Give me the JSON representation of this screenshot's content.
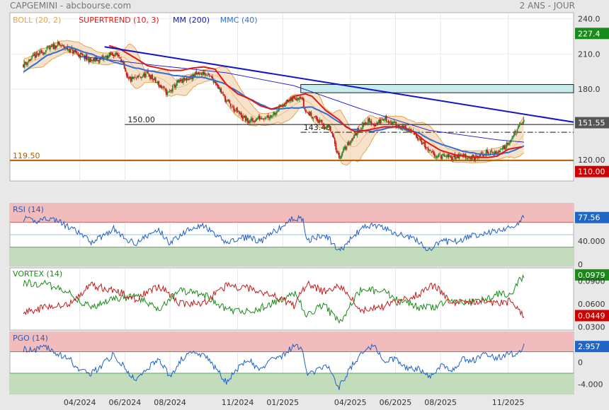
{
  "header": {
    "title": "CAPGEMINI - abcbourse.com",
    "period": "2 ANS - JOUR"
  },
  "colors": {
    "boll": "#e8a34a",
    "supertrend": "#e01818",
    "mm": "#1414c8",
    "mmc": "#2f6fd6",
    "candle_up": "#2e8b2e",
    "candle_down": "#c41a1a",
    "support": "#b35c00",
    "zone_high": "#f2bcbc",
    "zone_low": "#c2dcbc",
    "rectangle": "#c8ecec"
  },
  "chart_data": [
    {
      "type": "candlestick",
      "panel": "price",
      "legend": [
        {
          "label": "BOLL (20, 2)",
          "color": "#e8a34a"
        },
        {
          "label": "SUPERTREND (10, 3)",
          "color": "#e01818"
        },
        {
          "label": "MM (200)",
          "color": "#1414c8"
        },
        {
          "label": "MMC (40)",
          "color": "#2f6fd6"
        }
      ],
      "ylim": [
        102,
        245
      ],
      "yticks": [
        "240.0",
        "210.0",
        "180.0",
        "151.55",
        "120.00"
      ],
      "ytick_values": [
        240,
        210,
        180,
        151.55,
        120
      ],
      "xtick_labels": [
        "04/2024",
        "06/2024",
        "08/2024",
        "11/2024",
        "01/2025",
        "04/2025",
        "06/2025",
        "08/2025",
        "11/2025"
      ],
      "xtick_months": [
        2.5,
        4.5,
        6.5,
        9.5,
        11.5,
        14.5,
        16.5,
        18.5,
        21.5
      ],
      "x_range_months": [
        -0.6,
        24.4
      ],
      "close_anchors": [
        [
          0,
          201
        ],
        [
          0.5,
          208
        ],
        [
          1,
          213
        ],
        [
          1.5,
          218
        ],
        [
          2,
          214
        ],
        [
          2.5,
          209
        ],
        [
          3,
          204
        ],
        [
          3.5,
          206
        ],
        [
          4,
          210
        ],
        [
          4.3,
          208
        ],
        [
          4.6,
          188
        ],
        [
          5,
          189
        ],
        [
          5.5,
          193
        ],
        [
          6,
          184
        ],
        [
          6.4,
          176
        ],
        [
          6.8,
          185
        ],
        [
          7.2,
          188
        ],
        [
          7.6,
          192
        ],
        [
          8,
          194
        ],
        [
          8.5,
          187
        ],
        [
          9,
          170
        ],
        [
          9.5,
          160
        ],
        [
          10,
          152
        ],
        [
          10.5,
          156
        ],
        [
          11,
          158
        ],
        [
          11.5,
          167
        ],
        [
          12,
          172
        ],
        [
          12.3,
          175
        ],
        [
          12.5,
          161
        ],
        [
          12.8,
          158
        ],
        [
          13.2,
          151
        ],
        [
          13.6,
          146
        ],
        [
          14.0,
          122
        ],
        [
          14.3,
          131
        ],
        [
          14.8,
          144
        ],
        [
          15.2,
          153
        ],
        [
          15.6,
          150
        ],
        [
          16.0,
          155
        ],
        [
          16.5,
          150
        ],
        [
          17,
          146
        ],
        [
          17.5,
          140
        ],
        [
          18,
          126
        ],
        [
          18.5,
          123
        ],
        [
          19,
          122
        ],
        [
          19.5,
          124
        ],
        [
          20,
          121
        ],
        [
          20.5,
          126
        ],
        [
          21,
          126
        ],
        [
          21.3,
          131
        ],
        [
          21.7,
          140
        ],
        [
          22.0,
          148
        ],
        [
          22.2,
          154
        ]
      ],
      "supertrend_anchors": [
        [
          3.8,
          217
        ],
        [
          4.3,
          214
        ],
        [
          5,
          206
        ],
        [
          5.5,
          200
        ],
        [
          6,
          198
        ],
        [
          6.5,
          196
        ],
        [
          7,
          196
        ],
        [
          7.5,
          198
        ],
        [
          8,
          199
        ],
        [
          8.5,
          197
        ],
        [
          9,
          184
        ],
        [
          9.5,
          176
        ],
        [
          10,
          172
        ],
        [
          10.5,
          166
        ],
        [
          11,
          163
        ],
        [
          11.5,
          166
        ],
        [
          12,
          174
        ],
        [
          12.5,
          176
        ],
        [
          12.8,
          174
        ],
        [
          13.4,
          162
        ],
        [
          14.0,
          154
        ],
        [
          14.3,
          148
        ],
        [
          14.7,
          144
        ],
        [
          15.2,
          145
        ],
        [
          16.0,
          148
        ],
        [
          16.8,
          148
        ],
        [
          17.3,
          144
        ],
        [
          17.8,
          136
        ],
        [
          18.5,
          128
        ],
        [
          19.2,
          124
        ],
        [
          20,
          122
        ],
        [
          20.6,
          122
        ],
        [
          21,
          123
        ],
        [
          21.5,
          129
        ],
        [
          22.1,
          131
        ]
      ],
      "mm200_anchors": [
        [
          2.5,
          208
        ],
        [
          6,
          200
        ],
        [
          9,
          194
        ],
        [
          12,
          183
        ],
        [
          15,
          163
        ],
        [
          18,
          145
        ],
        [
          21,
          137
        ],
        [
          22.2,
          135
        ]
      ],
      "mmc40_anchors": [
        [
          0,
          195
        ],
        [
          1,
          208
        ],
        [
          2,
          216
        ],
        [
          3,
          210
        ],
        [
          4,
          203
        ],
        [
          5,
          198
        ],
        [
          6,
          194
        ],
        [
          7,
          191
        ],
        [
          8,
          190
        ],
        [
          9,
          184
        ],
        [
          10,
          172
        ],
        [
          11,
          163
        ],
        [
          12,
          164
        ],
        [
          12.8,
          165
        ],
        [
          13.5,
          158
        ],
        [
          14.5,
          146
        ],
        [
          15.5,
          144
        ],
        [
          16.5,
          148
        ],
        [
          17.5,
          143
        ],
        [
          18.5,
          133
        ],
        [
          19.5,
          127
        ],
        [
          20.5,
          124
        ],
        [
          21.5,
          126
        ],
        [
          22.2,
          132
        ]
      ],
      "trendline": {
        "start": [
          3.6,
          216
        ],
        "end": [
          24.4,
          152
        ]
      },
      "lines": [
        {
          "label": "150.00",
          "value": 150,
          "from_month": 4.5
        },
        {
          "label": "143.40",
          "value": 143.4,
          "from_month": 12.3,
          "style": "dashdot"
        },
        {
          "label": "119.50",
          "value": 119.5,
          "from_month": -0.6
        }
      ],
      "rectangle": {
        "from_month": 12.3,
        "to_month": 24.4,
        "y1": 177,
        "y2": 184
      },
      "price_badges": [
        {
          "label": "227.4",
          "value": 227.4,
          "color": "#1a8a1a"
        },
        {
          "label": "151.55",
          "value": 151.55,
          "color": "#555555"
        },
        {
          "label": "110.00",
          "value": 110,
          "color": "#cc0000"
        }
      ]
    },
    {
      "type": "line",
      "panel": "rsi",
      "legend": [
        {
          "label": "RSI (14)",
          "color": "#1e5fc8"
        }
      ],
      "ylim": [
        0,
        100
      ],
      "yticks": [
        "77.56",
        "40.000",
        "0"
      ],
      "ytick_values": [
        77.56,
        40,
        0
      ],
      "zone_high": [
        70,
        100
      ],
      "zone_low": [
        0,
        30
      ],
      "guide": 50,
      "anchors": [
        [
          0,
          76
        ],
        [
          0.5,
          71
        ],
        [
          1,
          77
        ],
        [
          1.5,
          73
        ],
        [
          2,
          62
        ],
        [
          2.5,
          52
        ],
        [
          3,
          38
        ],
        [
          3.5,
          48
        ],
        [
          4,
          60
        ],
        [
          4.5,
          43
        ],
        [
          5,
          37
        ],
        [
          5.5,
          48
        ],
        [
          6,
          58
        ],
        [
          6.5,
          36
        ],
        [
          7,
          51
        ],
        [
          7.5,
          63
        ],
        [
          8,
          64
        ],
        [
          8.5,
          49
        ],
        [
          9,
          38
        ],
        [
          9.5,
          42
        ],
        [
          10,
          47
        ],
        [
          10.5,
          38
        ],
        [
          11,
          52
        ],
        [
          11.5,
          63
        ],
        [
          12,
          78
        ],
        [
          12.4,
          73
        ],
        [
          12.6,
          40
        ],
        [
          13,
          46
        ],
        [
          13.5,
          46
        ],
        [
          14,
          23
        ],
        [
          14.5,
          42
        ],
        [
          15,
          60
        ],
        [
          15.5,
          66
        ],
        [
          16,
          60
        ],
        [
          16.5,
          52
        ],
        [
          17,
          48
        ],
        [
          17.5,
          40
        ],
        [
          18,
          24
        ],
        [
          18.5,
          40
        ],
        [
          19,
          38
        ],
        [
          19.5,
          43
        ],
        [
          20,
          49
        ],
        [
          20.5,
          53
        ],
        [
          21,
          57
        ],
        [
          21.5,
          60
        ],
        [
          22,
          71
        ],
        [
          22.2,
          77.56
        ]
      ]
    },
    {
      "type": "line",
      "panel": "vortex",
      "legend": [
        {
          "label": "VORTEX (14)",
          "color": "#1a8a1a"
        }
      ],
      "ylim": [
        0.026,
        0.107
      ],
      "yticks": [
        "0.0979",
        "0.0900",
        "0.0600",
        "0.0449",
        "0.0300"
      ],
      "ytick_values": [
        0.0979,
        0.09,
        0.06,
        0.0449,
        0.03
      ],
      "series": [
        {
          "color": "#1a8a1a",
          "anchors": [
            [
              0,
              0.088
            ],
            [
              1,
              0.086
            ],
            [
              2,
              0.074
            ],
            [
              3,
              0.055
            ],
            [
              4,
              0.066
            ],
            [
              5,
              0.07
            ],
            [
              6,
              0.053
            ],
            [
              7,
              0.078
            ],
            [
              8,
              0.072
            ],
            [
              9,
              0.052
            ],
            [
              10,
              0.05
            ],
            [
              11,
              0.06
            ],
            [
              12,
              0.075
            ],
            [
              12.6,
              0.045
            ],
            [
              13.3,
              0.06
            ],
            [
              14,
              0.036
            ],
            [
              14.5,
              0.058
            ],
            [
              15,
              0.08
            ],
            [
              16,
              0.075
            ],
            [
              16.8,
              0.062
            ],
            [
              17.5,
              0.056
            ],
            [
              18.2,
              0.055
            ],
            [
              19,
              0.066
            ],
            [
              20,
              0.061
            ],
            [
              21,
              0.072
            ],
            [
              21.6,
              0.074
            ],
            [
              22.2,
              0.0979
            ]
          ]
        },
        {
          "color": "#c41a1a",
          "anchors": [
            [
              0,
              0.05
            ],
            [
              1,
              0.055
            ],
            [
              2,
              0.06
            ],
            [
              3,
              0.085
            ],
            [
              4,
              0.078
            ],
            [
              5,
              0.067
            ],
            [
              6,
              0.083
            ],
            [
              7,
              0.06
            ],
            [
              8,
              0.062
            ],
            [
              9,
              0.084
            ],
            [
              10,
              0.08
            ],
            [
              11,
              0.072
            ],
            [
              12,
              0.058
            ],
            [
              12.6,
              0.088
            ],
            [
              13.3,
              0.076
            ],
            [
              14,
              0.085
            ],
            [
              14.5,
              0.068
            ],
            [
              15,
              0.052
            ],
            [
              16,
              0.057
            ],
            [
              16.8,
              0.066
            ],
            [
              17.5,
              0.072
            ],
            [
              18.2,
              0.085
            ],
            [
              19,
              0.06
            ],
            [
              20,
              0.064
            ],
            [
              21,
              0.062
            ],
            [
              21.6,
              0.063
            ],
            [
              22.2,
              0.0449
            ]
          ]
        }
      ]
    },
    {
      "type": "line",
      "panel": "pgo",
      "legend": [
        {
          "label": "PGO (14)",
          "color": "#1e5fc8"
        }
      ],
      "ylim": [
        -5.8,
        5.6
      ],
      "yticks": [
        "2.957",
        "0",
        "-4.000"
      ],
      "ytick_values": [
        2.957,
        0,
        -4
      ],
      "zone_high": [
        2,
        5.6
      ],
      "zone_low": [
        -5.8,
        -2
      ],
      "anchors": [
        [
          0,
          2.5
        ],
        [
          0.5,
          2.2
        ],
        [
          1,
          3.0
        ],
        [
          1.5,
          1.5
        ],
        [
          2,
          0.8
        ],
        [
          2.5,
          -1.5
        ],
        [
          3,
          -2.0
        ],
        [
          3.5,
          -0.5
        ],
        [
          4,
          1.5
        ],
        [
          4.5,
          -1.0
        ],
        [
          5,
          -3.5
        ],
        [
          5.5,
          -1.0
        ],
        [
          6,
          0.5
        ],
        [
          6.5,
          -2.5
        ],
        [
          7,
          0.5
        ],
        [
          7.5,
          1.8
        ],
        [
          8,
          1.5
        ],
        [
          8.5,
          -1.0
        ],
        [
          9,
          -3.5
        ],
        [
          9.5,
          -1.2
        ],
        [
          10,
          0.5
        ],
        [
          10.5,
          -1.5
        ],
        [
          11,
          0.8
        ],
        [
          11.5,
          1.2
        ],
        [
          12,
          3.3
        ],
        [
          12.4,
          2.0
        ],
        [
          12.6,
          -2.0
        ],
        [
          13,
          -1.5
        ],
        [
          13.5,
          -0.5
        ],
        [
          14,
          -4.6
        ],
        [
          14.5,
          -1.0
        ],
        [
          15,
          1.5
        ],
        [
          15.5,
          3.2
        ],
        [
          16,
          0.2
        ],
        [
          16.5,
          0.8
        ],
        [
          17,
          -1.0
        ],
        [
          17.5,
          -1.2
        ],
        [
          18,
          -2.8
        ],
        [
          18.5,
          -0.5
        ],
        [
          19,
          -1.5
        ],
        [
          19.5,
          0.5
        ],
        [
          20,
          0.5
        ],
        [
          20.5,
          1.5
        ],
        [
          21,
          0.8
        ],
        [
          21.5,
          1.5
        ],
        [
          22,
          1.8
        ],
        [
          22.2,
          2.957
        ]
      ]
    }
  ]
}
